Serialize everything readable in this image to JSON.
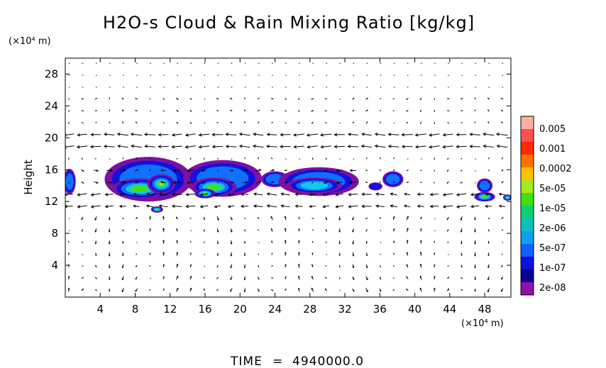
{
  "chart_data": {
    "type": "heatmap",
    "title": "H2O-s Cloud & Rain Mixing Ratio [kg/kg]",
    "ylabel": "Height",
    "y_unit": "(×10⁴ m)",
    "x_unit": "(×10⁴ m)",
    "xlim": [
      0,
      51
    ],
    "ylim": [
      0,
      30
    ],
    "x_ticks": [
      "4",
      "8",
      "12",
      "16",
      "20",
      "24",
      "28",
      "32",
      "36",
      "40",
      "44",
      "48"
    ],
    "y_ticks": [
      "4",
      "8",
      "12",
      "16",
      "20",
      "24",
      "28"
    ],
    "x_tick_values": [
      4,
      8,
      12,
      16,
      20,
      24,
      28,
      32,
      36,
      40,
      44,
      48
    ],
    "y_tick_values": [
      4,
      8,
      12,
      16,
      20,
      24,
      28
    ],
    "colorbar": {
      "labels": [
        "0.005",
        "0.001",
        "0.0002",
        "5e-05",
        "1e-05",
        "2e-06",
        "5e-07",
        "1e-07",
        "2e-08"
      ],
      "colors": [
        "#ffb0a0",
        "#ff5050",
        "#ff2800",
        "#ff7000",
        "#ffc000",
        "#a8e820",
        "#40e010",
        "#10d070",
        "#10c0c0",
        "#10a0f0",
        "#1060ff",
        "#1010d8",
        "#080090",
        "#9010a8"
      ]
    },
    "cloud_regions": [
      {
        "x": 0.5,
        "y": 14.5,
        "rx": 0.7,
        "ry": 1.6,
        "level": 1
      },
      {
        "x": 9.5,
        "y": 14.8,
        "rx": 5.0,
        "ry": 2.8,
        "level": 1
      },
      {
        "x": 8.5,
        "y": 13.6,
        "rx": 3.2,
        "ry": 1.3,
        "level": 3
      },
      {
        "x": 11.0,
        "y": 14.2,
        "rx": 1.6,
        "ry": 1.2,
        "level": 4
      },
      {
        "x": 10.5,
        "y": 11.0,
        "rx": 0.7,
        "ry": 0.4,
        "level": 3
      },
      {
        "x": 18.0,
        "y": 14.9,
        "rx": 4.5,
        "ry": 2.3,
        "level": 1
      },
      {
        "x": 17.0,
        "y": 13.8,
        "rx": 2.6,
        "ry": 1.2,
        "level": 3
      },
      {
        "x": 16.0,
        "y": 13.0,
        "rx": 1.2,
        "ry": 0.6,
        "level": 4
      },
      {
        "x": 24.0,
        "y": 14.8,
        "rx": 1.6,
        "ry": 1.0,
        "level": 1
      },
      {
        "x": 29.0,
        "y": 14.5,
        "rx": 4.6,
        "ry": 1.8,
        "level": 1
      },
      {
        "x": 28.5,
        "y": 14.0,
        "rx": 3.2,
        "ry": 1.0,
        "level": 2
      },
      {
        "x": 37.5,
        "y": 14.8,
        "rx": 1.2,
        "ry": 1.0,
        "level": 1
      },
      {
        "x": 35.5,
        "y": 13.9,
        "rx": 0.8,
        "ry": 0.5,
        "level": 0
      },
      {
        "x": 48.0,
        "y": 14.0,
        "rx": 0.9,
        "ry": 0.9,
        "level": 1
      },
      {
        "x": 48.0,
        "y": 12.6,
        "rx": 1.2,
        "ry": 0.6,
        "level": 3
      },
      {
        "x": 50.6,
        "y": 12.5,
        "rx": 0.5,
        "ry": 0.4,
        "level": 3
      }
    ]
  },
  "footer": {
    "time_label": "TIME",
    "equals": "=",
    "time_value": "4940000.0"
  }
}
